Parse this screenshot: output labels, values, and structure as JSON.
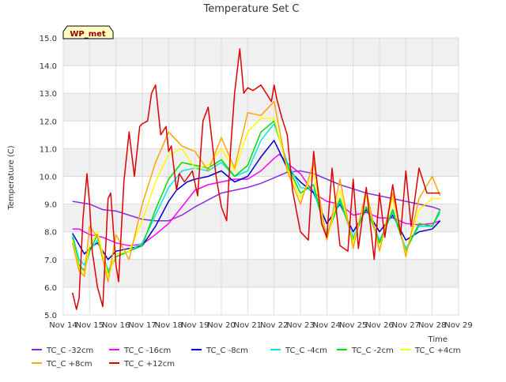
{
  "chart_data": {
    "type": "line",
    "title": "Temperature Set C",
    "xlabel": "Time",
    "ylabel": "Temperature (C)",
    "annotation": "WP_met",
    "xlim": [
      0,
      15
    ],
    "ylim": [
      5.0,
      15.0
    ],
    "x_ticks": [
      {
        "x": 0,
        "label": "Nov 14"
      },
      {
        "x": 1,
        "label": "Nov 15"
      },
      {
        "x": 2,
        "label": "Nov 16"
      },
      {
        "x": 3,
        "label": "Nov 17"
      },
      {
        "x": 4,
        "label": "Nov 18"
      },
      {
        "x": 5,
        "label": "Nov 19"
      },
      {
        "x": 6,
        "label": "Nov 20"
      },
      {
        "x": 7,
        "label": "Nov 21"
      },
      {
        "x": 8,
        "label": "Nov 22"
      },
      {
        "x": 9,
        "label": "Nov 23"
      },
      {
        "x": 10,
        "label": "Nov 24"
      },
      {
        "x": 11,
        "label": "Nov 25"
      },
      {
        "x": 12,
        "label": "Nov 26"
      },
      {
        "x": 13,
        "label": "Nov 27"
      },
      {
        "x": 14,
        "label": "Nov 28"
      },
      {
        "x": 15,
        "label": "Nov 29"
      }
    ],
    "y_ticks": [
      "5.0",
      "6.0",
      "7.0",
      "8.0",
      "9.0",
      "10.0",
      "11.0",
      "12.0",
      "13.0",
      "14.0",
      "15.0"
    ],
    "grid": true,
    "legend_position": "bottom",
    "series": [
      {
        "name": "TC_C -32cm",
        "color": "#8a2be2",
        "x": [
          0.35,
          1.0,
          1.5,
          2.0,
          2.5,
          3.0,
          3.5,
          4.0,
          4.5,
          5.0,
          5.5,
          6.0,
          6.5,
          7.0,
          7.5,
          8.0,
          8.5,
          9.0,
          9.5,
          10.0,
          10.5,
          11.0,
          11.5,
          12.0,
          12.5,
          13.0,
          13.5,
          14.0,
          14.3
        ],
        "y": [
          9.1,
          9.0,
          8.8,
          8.75,
          8.6,
          8.45,
          8.4,
          8.4,
          8.6,
          8.9,
          9.15,
          9.4,
          9.5,
          9.6,
          9.75,
          9.95,
          10.15,
          10.2,
          10.1,
          9.9,
          9.7,
          9.55,
          9.4,
          9.3,
          9.2,
          9.1,
          9.0,
          8.9,
          8.8
        ]
      },
      {
        "name": "TC_C -16cm",
        "color": "#ff00ff",
        "x": [
          0.35,
          0.6,
          1.0,
          1.5,
          2.0,
          2.5,
          3.0,
          3.5,
          4.0,
          4.5,
          5.0,
          5.5,
          6.0,
          6.5,
          7.0,
          7.5,
          8.0,
          8.2,
          8.6,
          9.0,
          9.5,
          10.0,
          10.5,
          11.0,
          11.5,
          12.0,
          12.5,
          13.0,
          13.5,
          14.0,
          14.3
        ],
        "y": [
          8.1,
          8.1,
          7.9,
          7.8,
          7.6,
          7.5,
          7.55,
          7.9,
          8.3,
          8.9,
          9.5,
          9.7,
          9.8,
          9.9,
          9.9,
          10.2,
          10.65,
          10.8,
          10.4,
          10.1,
          9.4,
          9.1,
          9.0,
          8.6,
          8.7,
          8.5,
          8.5,
          8.3,
          8.25,
          8.3,
          8.4
        ]
      },
      {
        "name": "TC_C -8cm",
        "color": "#0000cc",
        "x": [
          0.35,
          0.8,
          1.0,
          1.3,
          1.7,
          2.0,
          2.5,
          3.0,
          3.5,
          4.0,
          4.3,
          4.7,
          5.0,
          5.5,
          6.0,
          6.5,
          7.0,
          7.5,
          8.0,
          8.5,
          9.0,
          9.5,
          10.0,
          10.5,
          11.0,
          11.5,
          12.0,
          12.5,
          13.0,
          13.5,
          14.0,
          14.3
        ],
        "y": [
          7.95,
          7.2,
          7.4,
          7.6,
          7.0,
          7.3,
          7.4,
          7.5,
          8.2,
          9.1,
          9.5,
          9.8,
          9.9,
          10.0,
          10.2,
          9.8,
          10.0,
          10.7,
          11.3,
          10.3,
          9.8,
          9.4,
          8.3,
          9.0,
          8.0,
          8.8,
          8.0,
          8.6,
          7.7,
          8.0,
          8.1,
          8.4
        ]
      },
      {
        "name": "TC_C -4cm",
        "color": "#00e5ee",
        "x": [
          0.35,
          0.6,
          0.8,
          1.0,
          1.3,
          1.7,
          2.0,
          2.5,
          3.0,
          3.5,
          4.0,
          4.5,
          5.0,
          5.5,
          6.0,
          6.5,
          7.0,
          7.5,
          8.0,
          8.5,
          9.0,
          9.5,
          10.0,
          10.5,
          11.0,
          11.5,
          12.0,
          12.5,
          13.0,
          13.5,
          14.0,
          14.3
        ],
        "y": [
          7.9,
          7.0,
          6.8,
          7.3,
          7.7,
          6.6,
          7.1,
          7.3,
          7.6,
          8.6,
          9.6,
          10.2,
          10.3,
          10.2,
          10.5,
          10.0,
          10.2,
          11.3,
          11.9,
          10.5,
          9.6,
          9.5,
          7.9,
          9.1,
          7.8,
          8.9,
          7.7,
          8.7,
          7.4,
          8.2,
          8.2,
          8.7
        ]
      },
      {
        "name": "TC_C -2cm",
        "color": "#00dd00",
        "x": [
          0.35,
          0.6,
          0.8,
          1.0,
          1.3,
          1.7,
          2.0,
          2.5,
          3.0,
          3.5,
          4.0,
          4.5,
          5.0,
          5.5,
          6.0,
          6.5,
          7.0,
          7.5,
          8.0,
          8.5,
          9.0,
          9.5,
          10.0,
          10.5,
          11.0,
          11.5,
          12.0,
          12.5,
          13.0,
          13.5,
          14.0,
          14.3
        ],
        "y": [
          7.8,
          6.8,
          6.6,
          7.3,
          7.9,
          6.5,
          7.1,
          7.3,
          7.5,
          8.8,
          9.9,
          10.5,
          10.4,
          10.3,
          10.6,
          10.0,
          10.4,
          11.6,
          12.0,
          10.4,
          9.4,
          9.7,
          7.8,
          9.2,
          7.7,
          8.9,
          7.6,
          8.8,
          7.3,
          8.3,
          8.2,
          8.8
        ]
      },
      {
        "name": "TC_C +4cm",
        "color": "#ffff00",
        "x": [
          0.35,
          0.6,
          0.8,
          1.0,
          1.3,
          1.7,
          2.0,
          2.5,
          3.0,
          3.5,
          4.0,
          4.5,
          5.0,
          5.5,
          6.0,
          6.5,
          7.0,
          7.5,
          8.0,
          8.5,
          9.0,
          9.5,
          10.0,
          10.5,
          11.0,
          11.5,
          12.0,
          12.5,
          13.0,
          13.5,
          14.0,
          14.3
        ],
        "y": [
          7.7,
          6.7,
          6.5,
          7.5,
          8.0,
          6.4,
          7.2,
          7.3,
          8.4,
          9.8,
          10.8,
          11.0,
          10.3,
          10.4,
          11.0,
          10.2,
          11.6,
          12.1,
          12.1,
          10.3,
          9.2,
          10.1,
          7.7,
          9.5,
          7.6,
          9.3,
          7.4,
          9.2,
          7.2,
          8.8,
          9.2,
          9.2
        ]
      },
      {
        "name": "TC_C +8cm",
        "color": "#ffa500",
        "x": [
          0.35,
          0.6,
          0.8,
          1.0,
          1.3,
          1.7,
          2.0,
          2.5,
          3.0,
          3.5,
          4.0,
          4.5,
          5.0,
          5.5,
          6.0,
          6.5,
          7.0,
          7.5,
          8.0,
          8.5,
          9.0,
          9.5,
          10.0,
          10.5,
          11.0,
          11.5,
          12.0,
          12.5,
          13.0,
          13.5,
          14.0,
          14.3
        ],
        "y": [
          7.6,
          6.6,
          6.4,
          8.2,
          7.8,
          6.2,
          7.9,
          7.0,
          9.0,
          10.5,
          11.6,
          11.1,
          10.9,
          10.2,
          11.4,
          10.3,
          12.3,
          12.2,
          12.7,
          10.2,
          9.0,
          10.5,
          7.7,
          9.9,
          7.4,
          9.5,
          7.3,
          9.4,
          7.1,
          9.2,
          10.0,
          9.3
        ]
      },
      {
        "name": "TC_C +12cm",
        "color": "#dd0000",
        "x": [
          0.35,
          0.5,
          0.6,
          0.75,
          0.9,
          1.0,
          1.1,
          1.3,
          1.5,
          1.7,
          1.8,
          2.0,
          2.1,
          2.3,
          2.5,
          2.7,
          2.9,
          3.0,
          3.2,
          3.35,
          3.5,
          3.7,
          3.9,
          4.0,
          4.1,
          4.3,
          4.4,
          4.6,
          4.9,
          5.1,
          5.3,
          5.5,
          5.8,
          6.0,
          6.2,
          6.35,
          6.5,
          6.7,
          6.85,
          7.0,
          7.2,
          7.5,
          7.7,
          7.9,
          8.0,
          8.1,
          8.3,
          8.5,
          8.7,
          9.0,
          9.3,
          9.5,
          9.8,
          10.0,
          10.2,
          10.5,
          10.8,
          11.0,
          11.2,
          11.5,
          11.8,
          12.0,
          12.2,
          12.5,
          12.8,
          13.0,
          13.2,
          13.5,
          13.8,
          14.0,
          14.15,
          14.3
        ],
        "y": [
          5.8,
          5.2,
          5.6,
          8.5,
          10.1,
          9.0,
          7.3,
          6.0,
          5.3,
          9.2,
          9.4,
          6.8,
          6.2,
          9.8,
          11.6,
          10.0,
          11.8,
          11.9,
          12.0,
          13.0,
          13.3,
          11.5,
          11.8,
          10.9,
          11.1,
          9.5,
          10.1,
          9.8,
          10.2,
          9.3,
          12.0,
          12.5,
          10.0,
          8.9,
          8.4,
          11.0,
          13.0,
          14.6,
          13.0,
          13.2,
          13.1,
          13.3,
          13.0,
          12.7,
          13.3,
          12.8,
          12.1,
          11.5,
          9.5,
          8.0,
          7.7,
          10.9,
          8.3,
          7.8,
          10.3,
          7.5,
          7.3,
          9.9,
          7.4,
          9.6,
          7.0,
          9.4,
          7.8,
          9.7,
          7.9,
          10.2,
          8.2,
          10.3,
          9.4,
          9.4,
          9.4,
          9.4
        ]
      }
    ]
  }
}
